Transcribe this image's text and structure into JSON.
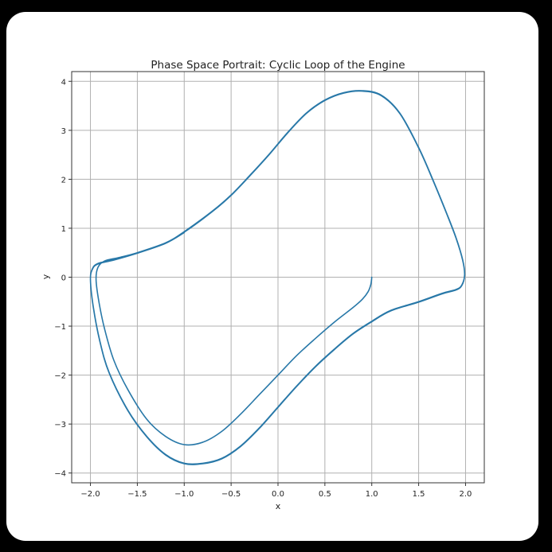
{
  "chart_data": {
    "type": "line",
    "title": "Phase Space Portrait: Cyclic Loop of the Engine",
    "xlabel": "x",
    "ylabel": "y",
    "xlim": [
      -2.2,
      2.2
    ],
    "ylim": [
      -4.2,
      4.2
    ],
    "xticks": [
      -2.0,
      -1.5,
      -1.0,
      -0.5,
      0.0,
      0.5,
      1.0,
      1.5,
      2.0
    ],
    "xtick_labels": [
      "−2.0",
      "−1.5",
      "−1.0",
      "−0.5",
      "0.0",
      "0.5",
      "1.0",
      "1.5",
      "2.0"
    ],
    "yticks": [
      -4,
      -3,
      -2,
      -1,
      0,
      1,
      2,
      3,
      4
    ],
    "ytick_labels": [
      "−4",
      "−3",
      "−2",
      "−1",
      "0",
      "1",
      "2",
      "3",
      "4"
    ],
    "grid": true,
    "line_color": "#2878a8",
    "series": [
      {
        "points": [
          [
            1.0,
            0.0
          ],
          [
            0.99,
            -0.15
          ],
          [
            0.96,
            -0.3
          ],
          [
            0.9,
            -0.45
          ],
          [
            0.8,
            -0.62
          ],
          [
            0.6,
            -0.92
          ],
          [
            0.4,
            -1.25
          ],
          [
            0.2,
            -1.6
          ],
          [
            0.0,
            -2.0
          ],
          [
            -0.2,
            -2.4
          ],
          [
            -0.4,
            -2.8
          ],
          [
            -0.6,
            -3.15
          ],
          [
            -0.8,
            -3.37
          ],
          [
            -1.0,
            -3.42
          ],
          [
            -1.2,
            -3.25
          ],
          [
            -1.4,
            -2.9
          ],
          [
            -1.6,
            -2.3
          ],
          [
            -1.75,
            -1.7
          ],
          [
            -1.85,
            -1.05
          ],
          [
            -1.91,
            -0.5
          ],
          [
            -1.94,
            -0.05
          ],
          [
            -1.92,
            0.2
          ],
          [
            -1.85,
            0.33
          ],
          [
            -1.7,
            0.4
          ],
          [
            -1.5,
            0.5
          ],
          [
            -1.2,
            0.7
          ],
          [
            -1.0,
            0.93
          ],
          [
            -0.7,
            1.35
          ],
          [
            -0.5,
            1.68
          ],
          [
            -0.3,
            2.08
          ],
          [
            -0.1,
            2.5
          ],
          [
            0.1,
            2.95
          ],
          [
            0.3,
            3.35
          ],
          [
            0.5,
            3.62
          ],
          [
            0.7,
            3.77
          ],
          [
            0.9,
            3.81
          ],
          [
            1.1,
            3.72
          ],
          [
            1.3,
            3.35
          ],
          [
            1.5,
            2.65
          ],
          [
            1.65,
            2.0
          ],
          [
            1.8,
            1.3
          ],
          [
            1.9,
            0.8
          ],
          [
            1.97,
            0.35
          ],
          [
            1.99,
            0.05
          ],
          [
            1.96,
            -0.16
          ],
          [
            1.9,
            -0.25
          ],
          [
            1.75,
            -0.33
          ],
          [
            1.5,
            -0.5
          ],
          [
            1.2,
            -0.68
          ],
          [
            1.0,
            -0.9
          ],
          [
            0.8,
            -1.15
          ],
          [
            0.6,
            -1.47
          ],
          [
            0.4,
            -1.82
          ],
          [
            0.2,
            -2.22
          ],
          [
            0.0,
            -2.65
          ],
          [
            -0.2,
            -3.08
          ],
          [
            -0.4,
            -3.45
          ],
          [
            -0.6,
            -3.7
          ],
          [
            -0.8,
            -3.8
          ],
          [
            -1.0,
            -3.8
          ],
          [
            -1.2,
            -3.62
          ],
          [
            -1.4,
            -3.25
          ],
          [
            -1.6,
            -2.72
          ],
          [
            -1.8,
            -1.95
          ],
          [
            -1.9,
            -1.3
          ],
          [
            -1.97,
            -0.6
          ],
          [
            -2.0,
            -0.05
          ],
          [
            -1.98,
            0.17
          ],
          [
            -1.92,
            0.28
          ],
          [
            -1.75,
            0.36
          ],
          [
            -1.5,
            0.5
          ],
          [
            -1.2,
            0.7
          ],
          [
            -1.0,
            0.92
          ],
          [
            -0.7,
            1.34
          ],
          [
            -0.5,
            1.67
          ],
          [
            -0.3,
            2.07
          ],
          [
            -0.1,
            2.49
          ],
          [
            0.1,
            2.94
          ],
          [
            0.3,
            3.34
          ],
          [
            0.5,
            3.61
          ],
          [
            0.7,
            3.76
          ],
          [
            0.9,
            3.8
          ],
          [
            1.1,
            3.71
          ],
          [
            1.3,
            3.34
          ],
          [
            1.5,
            2.64
          ],
          [
            1.65,
            1.99
          ],
          [
            1.8,
            1.29
          ],
          [
            1.9,
            0.79
          ],
          [
            1.97,
            0.34
          ],
          [
            1.99,
            0.04
          ],
          [
            1.96,
            -0.17
          ],
          [
            1.9,
            -0.26
          ],
          [
            1.75,
            -0.34
          ],
          [
            1.5,
            -0.51
          ],
          [
            1.2,
            -0.69
          ],
          [
            1.0,
            -0.91
          ],
          [
            0.8,
            -1.16
          ],
          [
            0.6,
            -1.48
          ],
          [
            0.4,
            -1.83
          ],
          [
            0.2,
            -2.23
          ],
          [
            0.0,
            -2.66
          ],
          [
            -0.2,
            -3.09
          ],
          [
            -0.4,
            -3.46
          ],
          [
            -0.6,
            -3.71
          ],
          [
            -0.8,
            -3.81
          ],
          [
            -1.0,
            -3.81
          ],
          [
            -1.2,
            -3.63
          ],
          [
            -1.4,
            -3.26
          ],
          [
            -1.6,
            -2.73
          ],
          [
            -1.8,
            -1.96
          ],
          [
            -1.9,
            -1.31
          ],
          [
            -1.97,
            -0.61
          ],
          [
            -2.0,
            -0.06
          ],
          [
            -1.98,
            0.16
          ],
          [
            -1.92,
            0.27
          ],
          [
            -1.75,
            0.35
          ],
          [
            -1.5,
            0.49
          ],
          [
            -1.2,
            0.69
          ],
          [
            -1.0,
            0.91
          ]
        ]
      }
    ]
  }
}
